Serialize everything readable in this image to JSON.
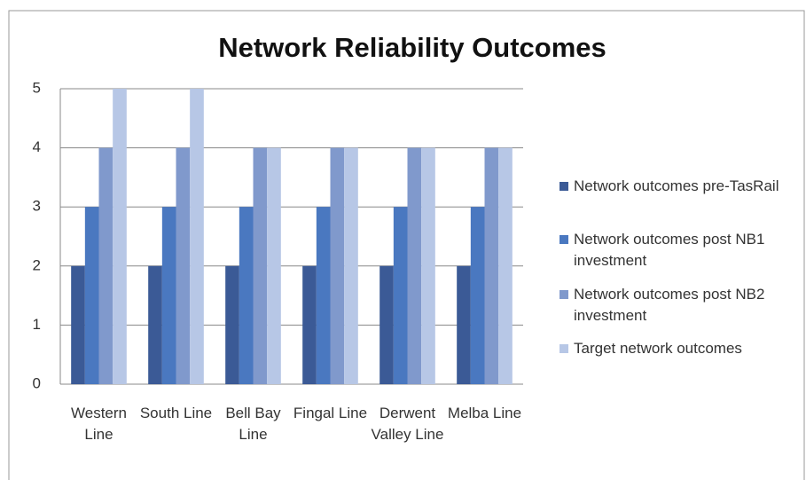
{
  "chart_data": {
    "type": "bar",
    "title": "Network Reliability Outcomes",
    "categories": [
      "Western Line",
      "South Line",
      "Bell Bay Line",
      "Fingal Line",
      "Derwent Valley Line",
      "Melba Line"
    ],
    "series": [
      {
        "name": "Network outcomes pre-TasRail",
        "color": "#3b5a96",
        "values": [
          2,
          2,
          2,
          2,
          2,
          2
        ]
      },
      {
        "name": "Network outcomes post NB1 investment",
        "color": "#4a78c0",
        "values": [
          3,
          3,
          3,
          3,
          3,
          3
        ]
      },
      {
        "name": "Network outcomes post NB2 investment",
        "color": "#8099cc",
        "values": [
          4,
          4,
          4,
          4,
          4,
          4
        ]
      },
      {
        "name": "Target network outcomes",
        "color": "#b7c7e6",
        "values": [
          5,
          5,
          4,
          4,
          4,
          4
        ]
      }
    ],
    "ylim": [
      0,
      5
    ],
    "yticks": [
      0,
      1,
      2,
      3,
      4,
      5
    ],
    "grid": true,
    "legend": "right"
  }
}
